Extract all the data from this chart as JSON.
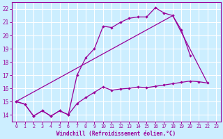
{
  "xlabel": "Windchill (Refroidissement éolien,°C)",
  "bg_color": "#cceeff",
  "grid_color": "#ffffff",
  "line_color": "#990099",
  "xlim": [
    -0.5,
    23.5
  ],
  "ylim": [
    13.5,
    22.5
  ],
  "xticks": [
    0,
    1,
    2,
    3,
    4,
    5,
    6,
    7,
    8,
    9,
    10,
    11,
    12,
    13,
    14,
    15,
    16,
    17,
    18,
    19,
    20,
    21,
    22,
    23
  ],
  "yticks": [
    14,
    15,
    16,
    17,
    18,
    19,
    20,
    21,
    22
  ],
  "curve1_x": [
    0,
    1,
    2,
    3,
    4,
    5,
    6,
    7,
    8,
    9,
    10,
    11,
    12,
    13,
    14,
    15,
    16,
    17,
    18,
    19,
    20
  ],
  "curve1_y": [
    15.0,
    14.8,
    13.9,
    14.3,
    13.9,
    14.3,
    14.0,
    17.0,
    18.3,
    19.0,
    20.7,
    20.6,
    21.0,
    21.3,
    21.4,
    21.4,
    22.1,
    21.7,
    21.5,
    20.4,
    18.5
  ],
  "line2_x": [
    0,
    18,
    22
  ],
  "line2_y": [
    15.0,
    21.5,
    16.4
  ],
  "curve3_x": [
    0,
    1,
    2,
    3,
    4,
    5,
    6,
    7,
    8,
    9,
    10,
    11,
    12,
    13,
    14,
    15,
    16,
    17,
    18,
    19,
    20,
    21,
    22
  ],
  "curve3_y": [
    15.0,
    14.8,
    13.9,
    14.3,
    13.9,
    14.3,
    14.0,
    14.85,
    15.3,
    15.7,
    16.1,
    15.85,
    15.95,
    16.0,
    16.1,
    16.05,
    16.15,
    16.25,
    16.35,
    16.45,
    16.55,
    16.5,
    16.4
  ]
}
